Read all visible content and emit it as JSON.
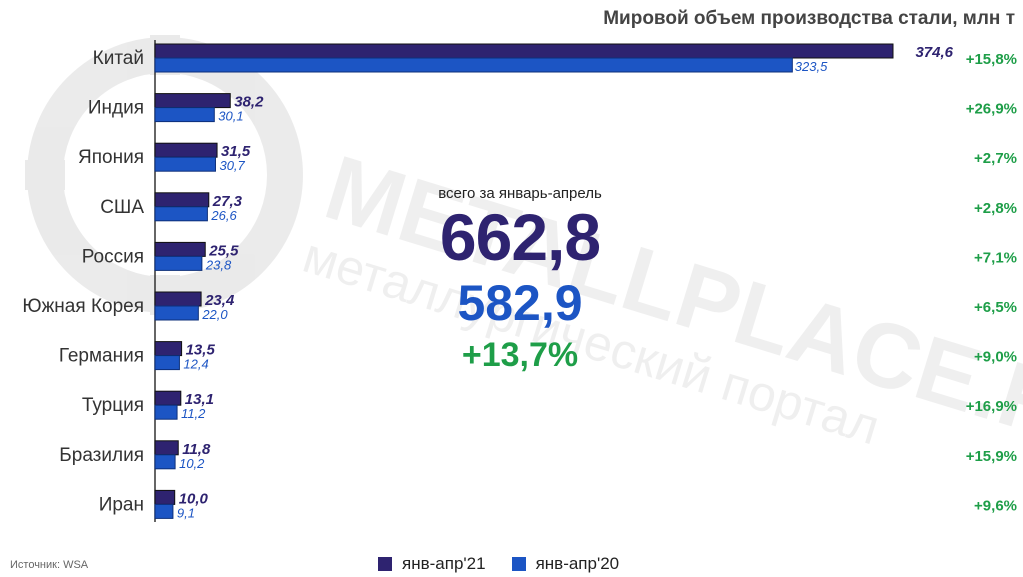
{
  "title": "Мировой объем производства стали, млн т",
  "source": "Источник: WSA",
  "center": {
    "caption": "всего за январь-апрель",
    "total_2021": "662,8",
    "total_2020": "582,9",
    "change": "+13,7%"
  },
  "watermark": {
    "brand": "METALLPLACE.RU",
    "tagline": "металлургический портал"
  },
  "colors": {
    "bar_2021": "#2e2370",
    "bar_2020": "#1c55c4",
    "change": "#1e9e48",
    "label": "#333333"
  },
  "chart_data": {
    "type": "bar",
    "orientation": "horizontal",
    "title": "Мировой объем производства стали, млн т",
    "categories": [
      "Китай",
      "Индия",
      "Япония",
      "США",
      "Россия",
      "Южная Корея",
      "Германия",
      "Турция",
      "Бразилия",
      "Иран"
    ],
    "series": [
      {
        "name": "янв-апр'21",
        "values": [
          374.6,
          38.2,
          31.5,
          27.3,
          25.5,
          23.4,
          13.5,
          13.1,
          11.8,
          10.0
        ],
        "labels": [
          "374,6",
          "38,2",
          "31,5",
          "27,3",
          "25,5",
          "23,4",
          "13,5",
          "13,1",
          "11,8",
          "10,0"
        ]
      },
      {
        "name": "янв-апр'20",
        "values": [
          323.5,
          30.1,
          30.7,
          26.6,
          23.8,
          22.0,
          12.4,
          11.2,
          10.2,
          9.1
        ],
        "labels": [
          "323,5",
          "30,1",
          "30,7",
          "26,6",
          "23,8",
          "22,0",
          "12,4",
          "11,2",
          "10,2",
          "9,1"
        ]
      }
    ],
    "changes": [
      "+15,8%",
      "+26,9%",
      "+2,7%",
      "+2,8%",
      "+7,1%",
      "+6,5%",
      "+9,0%",
      "+16,9%",
      "+15,9%",
      "+9,6%"
    ],
    "xlim": [
      0,
      374.6
    ],
    "grid": false,
    "legend": "bottom-center"
  }
}
